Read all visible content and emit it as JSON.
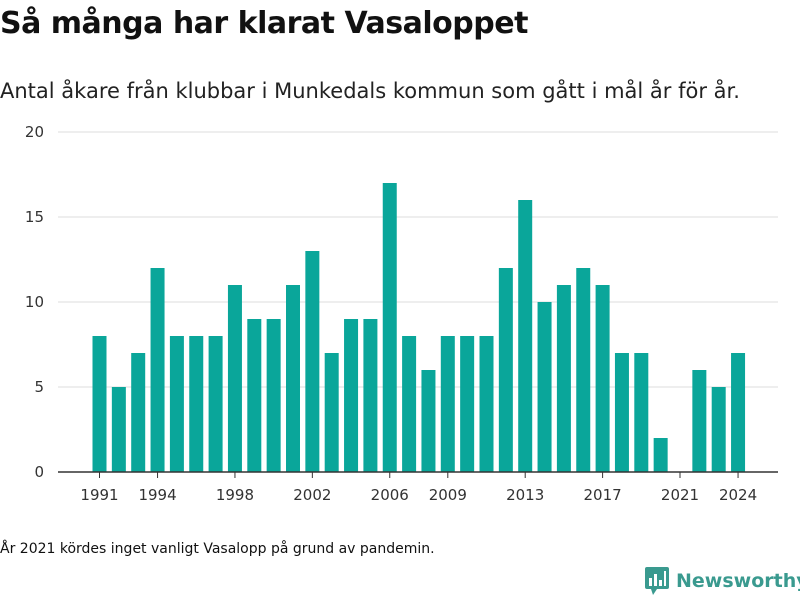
{
  "header": {
    "title": "Så många har klarat Vasaloppet",
    "subtitle": "Antal åkare från klubbar i Munkedals kommun som gått i mål år för år."
  },
  "footer": {
    "note": "År 2021 kördes inget vanligt Vasalopp på grund av pandemin.",
    "brand": "Newsworthy"
  },
  "colors": {
    "bar": "#0aa69a",
    "grid": "#dddddd",
    "axis": "#333333",
    "brand": "#3a9a8f"
  },
  "chart_data": {
    "type": "bar",
    "title": "Så många har klarat Vasaloppet",
    "subtitle": "Antal åkare från klubbar i Munkedals kommun som gått i mål år för år.",
    "xlabel": "",
    "ylabel": "",
    "ylim": [
      0,
      20
    ],
    "yticks": [
      0,
      5,
      10,
      15,
      20
    ],
    "xticks": [
      1991,
      1994,
      1998,
      2002,
      2006,
      2009,
      2013,
      2017,
      2021,
      2024
    ],
    "grid": true,
    "categories": [
      1991,
      1992,
      1993,
      1994,
      1995,
      1996,
      1997,
      1998,
      1999,
      2000,
      2001,
      2002,
      2003,
      2004,
      2005,
      2006,
      2007,
      2008,
      2009,
      2010,
      2011,
      2012,
      2013,
      2014,
      2015,
      2016,
      2017,
      2018,
      2019,
      2020,
      2021,
      2022,
      2023,
      2024
    ],
    "values": [
      8,
      5,
      7,
      12,
      8,
      8,
      8,
      11,
      9,
      9,
      11,
      13,
      7,
      9,
      9,
      17,
      8,
      6,
      8,
      8,
      8,
      12,
      16,
      10,
      11,
      12,
      11,
      7,
      7,
      2,
      0,
      6,
      5,
      7
    ]
  }
}
